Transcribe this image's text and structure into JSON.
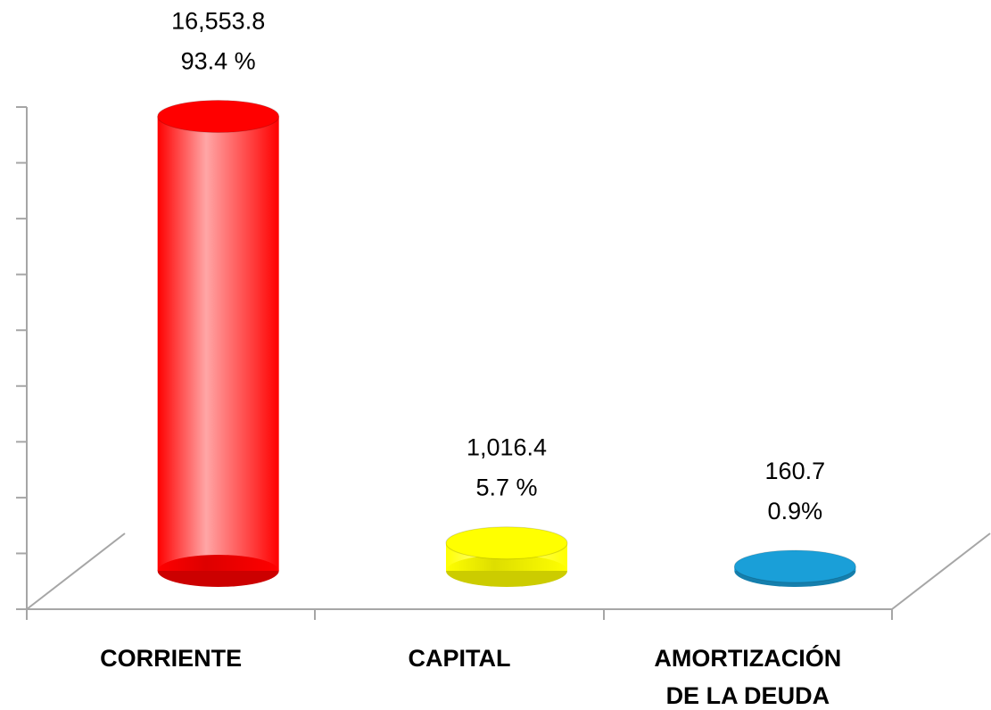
{
  "chart_data": {
    "type": "bar",
    "categories": [
      [
        "CORRIENTE"
      ],
      [
        "CAPITAL"
      ],
      [
        "AMORTIZACIÓN",
        "DE  LA DEUDA"
      ]
    ],
    "values": [
      16553.8,
      1016.4,
      160.7
    ],
    "value_labels": [
      "16,553.8",
      "1,016.4",
      "160.7"
    ],
    "percentages": [
      93.4,
      5.7,
      0.9
    ],
    "percentage_labels": [
      "93.4 %",
      "5.7 %",
      "0.9%"
    ],
    "colors": [
      "#ff0000",
      "#ffff00",
      "#1a9fd8"
    ],
    "ylim": [
      0,
      18000
    ],
    "yticks": [
      0,
      2000,
      4000,
      6000,
      8000,
      10000,
      12000,
      14000,
      16000,
      18000
    ]
  }
}
